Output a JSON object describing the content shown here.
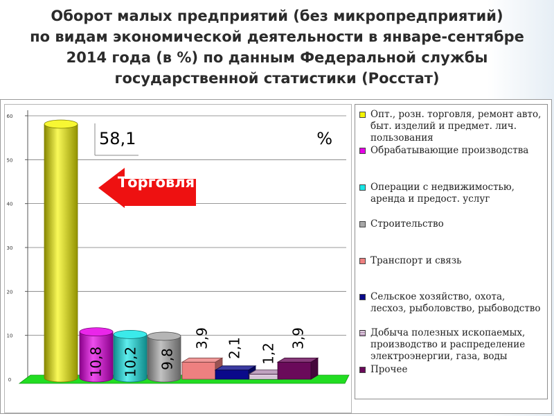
{
  "title_lines": [
    "Оборот малых предприятий (без микропредприятий)",
    "по видам экономической деятельности в январе-сентябре",
    "2014 года (в %) по данным Федеральной службы",
    "государственной статистики (Росстат)"
  ],
  "callout": {
    "value": "58,1",
    "unit": "%"
  },
  "arrow_label": "Торговля",
  "colors": {
    "series": [
      "#f5f500",
      "#e600e6",
      "#19e6e6",
      "#a8a8a8",
      "#ee8080",
      "#0a0a8a",
      "#b08ab0",
      "#6a0a5a"
    ],
    "floor": "#22dd22",
    "arrow": "#ee1111"
  },
  "chart_data": {
    "type": "bar",
    "ylim": [
      0,
      60
    ],
    "yticks": [
      "0",
      "10",
      "20",
      "30",
      "40",
      "50",
      "60"
    ],
    "grid": true,
    "legend_position": "right",
    "categories": [
      "Опт., розн. торговля, ремонт авто, быт. изделий и предмет. лич. пользования",
      "Обрабатывающие производства",
      "Операции с недвижимостью, аренда и предост. услуг",
      "Строительство",
      "Транспорт и связь",
      "Сельское хозяйство, охота, лесхоз, рыболовство, рыбоводство",
      "Добыча полезных ископаемых, производство и распределение электроэнергии, газа, воды",
      "Прочее"
    ],
    "values": [
      58.1,
      10.8,
      10.2,
      9.8,
      3.9,
      2.1,
      1.2,
      3.9
    ],
    "data_labels": [
      "",
      "10,8",
      "10,2",
      "9,8",
      "3,9",
      "2,1",
      "1,2",
      "3,9"
    ]
  }
}
